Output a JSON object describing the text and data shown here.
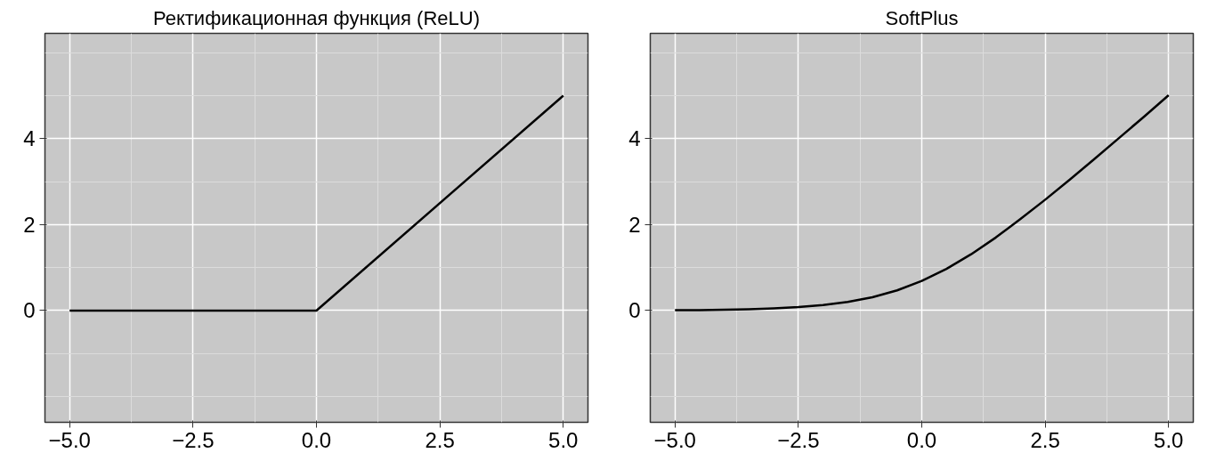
{
  "chart_data": [
    {
      "type": "line",
      "title": "Ректификационная функция (ReLU)",
      "x": [
        -5,
        0,
        5
      ],
      "series": [
        {
          "color": "#000000",
          "values": [
            0,
            0,
            5
          ]
        }
      ],
      "xlim": [
        -5.5,
        5.5
      ],
      "ylim": [
        -2.6,
        6.45
      ],
      "xticks": [
        {
          "value": -5,
          "label": "−5.0"
        },
        {
          "value": -2.5,
          "label": "−2.5"
        },
        {
          "value": 0,
          "label": "0.0"
        },
        {
          "value": 2.5,
          "label": "2.5"
        },
        {
          "value": 5,
          "label": "5.0"
        }
      ],
      "yticks": [
        0,
        2,
        4
      ],
      "grid": true,
      "marker": "none",
      "line_style": "solid"
    },
    {
      "type": "line",
      "title": "SoftPlus",
      "x": [
        -5,
        -4.5,
        -4,
        -3.5,
        -3,
        -2.5,
        -2,
        -1.5,
        -1,
        -0.5,
        0,
        0.5,
        1,
        1.5,
        2,
        2.5,
        3,
        3.5,
        4,
        4.5,
        5
      ],
      "series": [
        {
          "color": "#000000",
          "values": [
            0.01,
            0.01,
            0.02,
            0.03,
            0.05,
            0.08,
            0.13,
            0.2,
            0.31,
            0.47,
            0.69,
            0.97,
            1.31,
            1.7,
            2.13,
            2.58,
            3.05,
            3.53,
            4.02,
            4.51,
            5.01
          ]
        }
      ],
      "xlim": [
        -5.5,
        5.5
      ],
      "ylim": [
        -2.6,
        6.45
      ],
      "xticks": [
        {
          "value": -5,
          "label": "−5.0"
        },
        {
          "value": -2.5,
          "label": "−2.5"
        },
        {
          "value": 0,
          "label": "0.0"
        },
        {
          "value": 2.5,
          "label": "2.5"
        },
        {
          "value": 5,
          "label": "5.0"
        }
      ],
      "yticks": [
        0,
        2,
        4
      ],
      "grid": true,
      "marker": "none",
      "line_style": "solid"
    }
  ]
}
